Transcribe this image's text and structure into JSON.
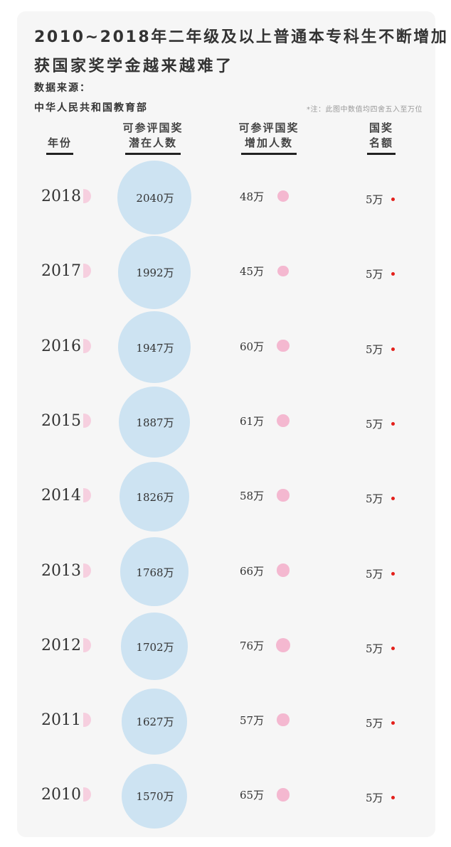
{
  "title_line1": "2010~2018年二年级及以上普通本专科生不断增加",
  "title_line2": "获国家奖学金越来越难了",
  "source_label": "数据来源：",
  "source_value": "中华人民共和国教育部",
  "note": "*注：此图中数值均四舍五入至万位",
  "headers": {
    "year": "年份",
    "total_line1": "可参评国奖",
    "total_line2": "潜在人数",
    "added_line1": "可参评国奖",
    "added_line2": "增加人数",
    "award_line1": "国奖",
    "award_line2": "名额"
  },
  "colors": {
    "card_bg": "#f6f6f6",
    "total_circle": "#cde3f2",
    "added_circle": "#f4b8d0",
    "year_tab": "#f6cfdf",
    "award_dot": "#e3201b"
  },
  "chart_data": {
    "type": "table",
    "unit": "万",
    "columns": [
      "年份",
      "可参评国奖潜在人数",
      "可参评国奖增加人数",
      "国奖名额"
    ],
    "rows": [
      {
        "year": "2018",
        "total": 2040,
        "added": 48,
        "award": 5,
        "total_label": "2040万",
        "added_label": "48万",
        "award_label": "5万"
      },
      {
        "year": "2017",
        "total": 1992,
        "added": 45,
        "award": 5,
        "total_label": "1992万",
        "added_label": "45万",
        "award_label": "5万"
      },
      {
        "year": "2016",
        "total": 1947,
        "added": 60,
        "award": 5,
        "total_label": "1947万",
        "added_label": "60万",
        "award_label": "5万"
      },
      {
        "year": "2015",
        "total": 1887,
        "added": 61,
        "award": 5,
        "total_label": "1887万",
        "added_label": "61万",
        "award_label": "5万"
      },
      {
        "year": "2014",
        "total": 1826,
        "added": 58,
        "award": 5,
        "total_label": "1826万",
        "added_label": "58万",
        "award_label": "5万"
      },
      {
        "year": "2013",
        "total": 1768,
        "added": 66,
        "award": 5,
        "total_label": "1768万",
        "added_label": "66万",
        "award_label": "5万"
      },
      {
        "year": "2012",
        "total": 1702,
        "added": 76,
        "award": 5,
        "total_label": "1702万",
        "added_label": "76万",
        "award_label": "5万"
      },
      {
        "year": "2011",
        "total": 1627,
        "added": 57,
        "award": 5,
        "total_label": "1627万",
        "added_label": "57万",
        "award_label": "5万"
      },
      {
        "year": "2010",
        "total": 1570,
        "added": 65,
        "award": 5,
        "total_label": "1570万",
        "added_label": "65万",
        "award_label": "5万"
      }
    ]
  }
}
